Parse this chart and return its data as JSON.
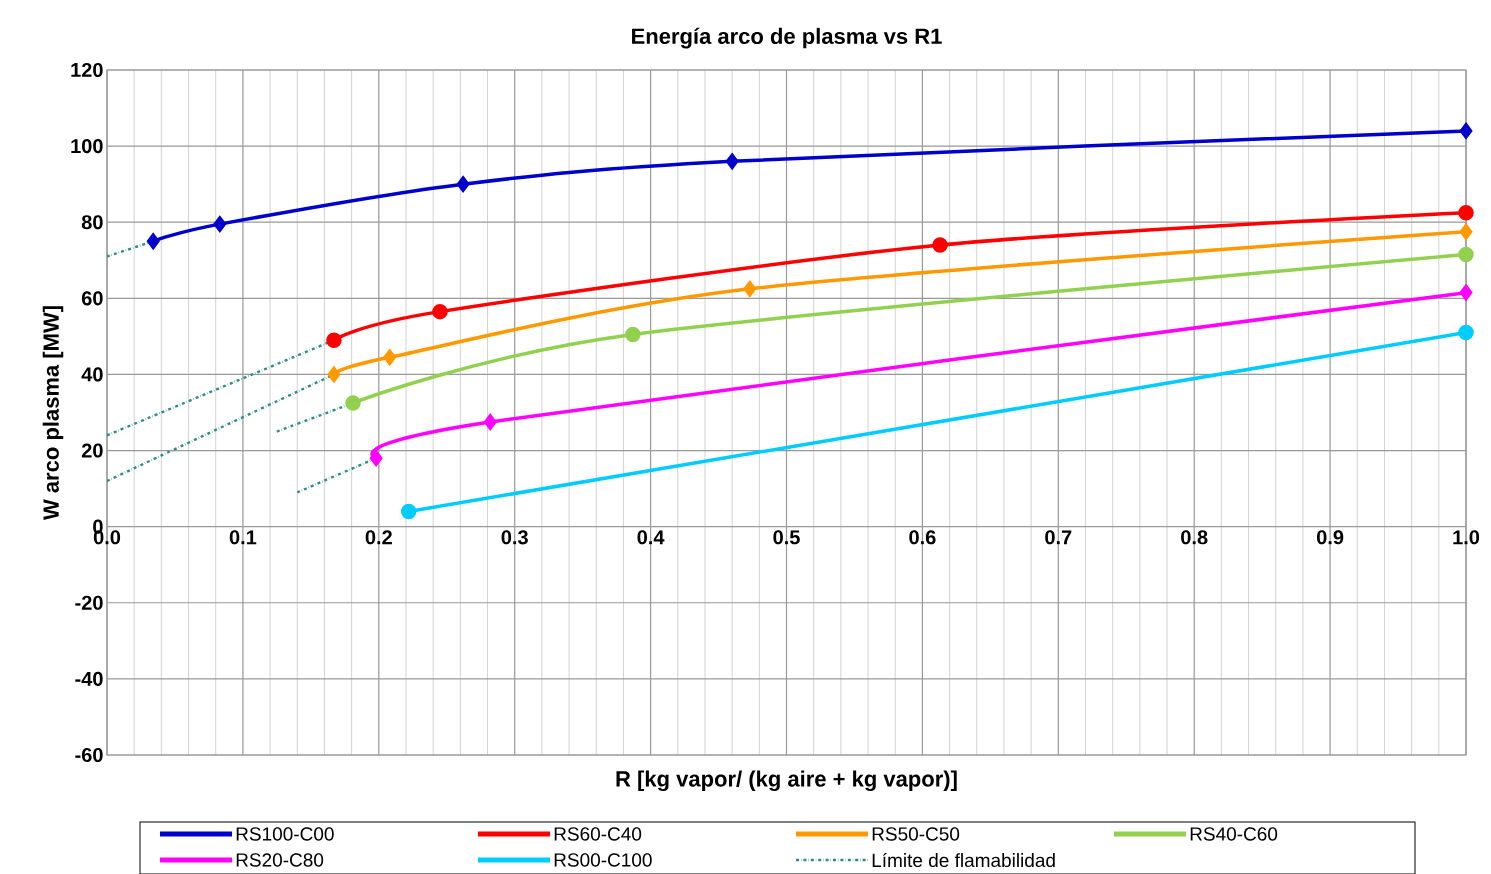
{
  "chart_data": {
    "type": "line",
    "title": "Energía arco de plasma vs R1",
    "xlabel": "R [kg vapor/ (kg aire + kg vapor)]",
    "ylabel": "W arco plasma  [MW]",
    "xlim": [
      0,
      1
    ],
    "ylim": [
      -60,
      120
    ],
    "xticks": [
      {
        "value": 0,
        "label": "0.0"
      },
      0.1,
      0.2,
      0.3,
      0.4,
      0.5,
      0.6,
      0.7,
      0.8,
      0.9,
      {
        "value": 1,
        "label": "1.0"
      }
    ],
    "yticks": [
      -60,
      -40,
      -20,
      0,
      20,
      40,
      60,
      80,
      100,
      120
    ],
    "grid": true,
    "legend": "bottom",
    "series": [
      {
        "name": "RS100-C00",
        "color": "#0000cc",
        "marker": "diamond",
        "x": [
          0.034,
          0.083,
          0.262,
          0.46,
          1.0
        ],
        "values": [
          75,
          79.5,
          90,
          96,
          104
        ]
      },
      {
        "name": "RS60-C40",
        "color": "#ff0000",
        "marker": "circle",
        "x": [
          0.167,
          0.245,
          0.613,
          1.0
        ],
        "values": [
          49,
          56.5,
          74,
          82.5
        ]
      },
      {
        "name": "RS50-C50",
        "color": "#ff9900",
        "marker": "diamond",
        "x": [
          0.167,
          0.208,
          0.473,
          1.0
        ],
        "values": [
          40,
          44.5,
          62.5,
          77.5
        ]
      },
      {
        "name": "RS40-C60",
        "color": "#92d050",
        "marker": "circle",
        "x": [
          0.181,
          0.387,
          1.0
        ],
        "values": [
          32.5,
          50.5,
          71.5
        ]
      },
      {
        "name": "RS20-C80",
        "color": "#ff00ff",
        "marker": "diamond",
        "x": [
          0.198,
          0.282,
          1.0
        ],
        "values": [
          18,
          27.5,
          61.5
        ]
      },
      {
        "name": "RS00-C100",
        "color": "#00ccff",
        "marker": "circle",
        "x": [
          0.222,
          1.0
        ],
        "values": [
          4,
          51
        ]
      },
      {
        "name": "Límite de flamabilidad",
        "color": "#2e8b8b",
        "marker": "none",
        "line_style": "dashed",
        "x": [
          0,
          0.034
        ],
        "values": [
          71,
          75
        ]
      },
      {
        "color": "#2e8b8b",
        "marker": "none",
        "line_style": "dashed",
        "x": [
          0,
          0.167
        ],
        "values": [
          24,
          49
        ]
      },
      {
        "color": "#2e8b8b",
        "marker": "none",
        "line_style": "dashed",
        "x": [
          0,
          0.167
        ],
        "values": [
          12,
          40
        ]
      },
      {
        "color": "#2e8b8b",
        "marker": "none",
        "line_style": "dashed",
        "x": [
          0.125,
          0.181
        ],
        "values": [
          25,
          32.5
        ]
      },
      {
        "color": "#2e8b8b",
        "marker": "none",
        "line_style": "dashed",
        "x": [
          0.14,
          0.198
        ],
        "values": [
          9,
          18
        ]
      }
    ]
  }
}
